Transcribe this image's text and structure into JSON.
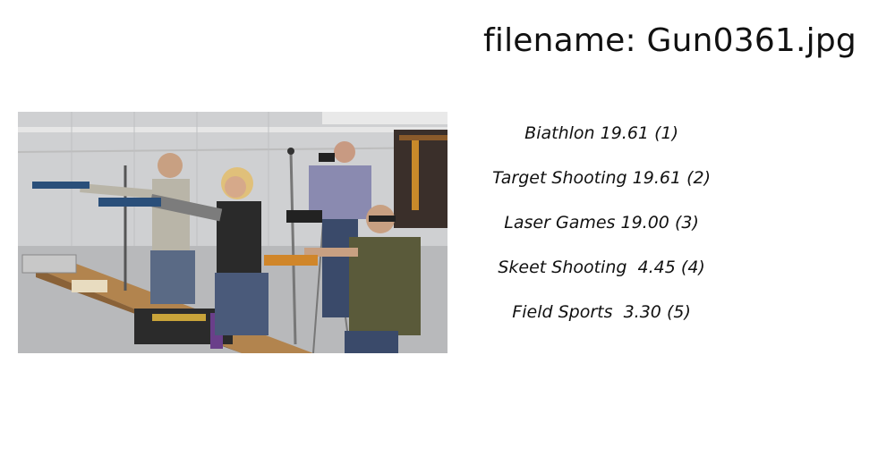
{
  "header": {
    "filename_label": "filename: Gun0361.jpg"
  },
  "image": {
    "subject": "people-shooting-air-pistols-indoor-range"
  },
  "predictions": [
    {
      "label": "Biathlon",
      "score": "19.61",
      "rank": "(1)"
    },
    {
      "label": "Target Shooting",
      "score": "19.61",
      "rank": "(2)"
    },
    {
      "label": "Laser Games",
      "score": "19.00",
      "rank": "(3)"
    },
    {
      "label": "Skeet Shooting",
      "score": " 4.45",
      "rank": "(4)"
    },
    {
      "label": "Field Sports",
      "score": " 3.30",
      "rank": "(5)"
    }
  ]
}
